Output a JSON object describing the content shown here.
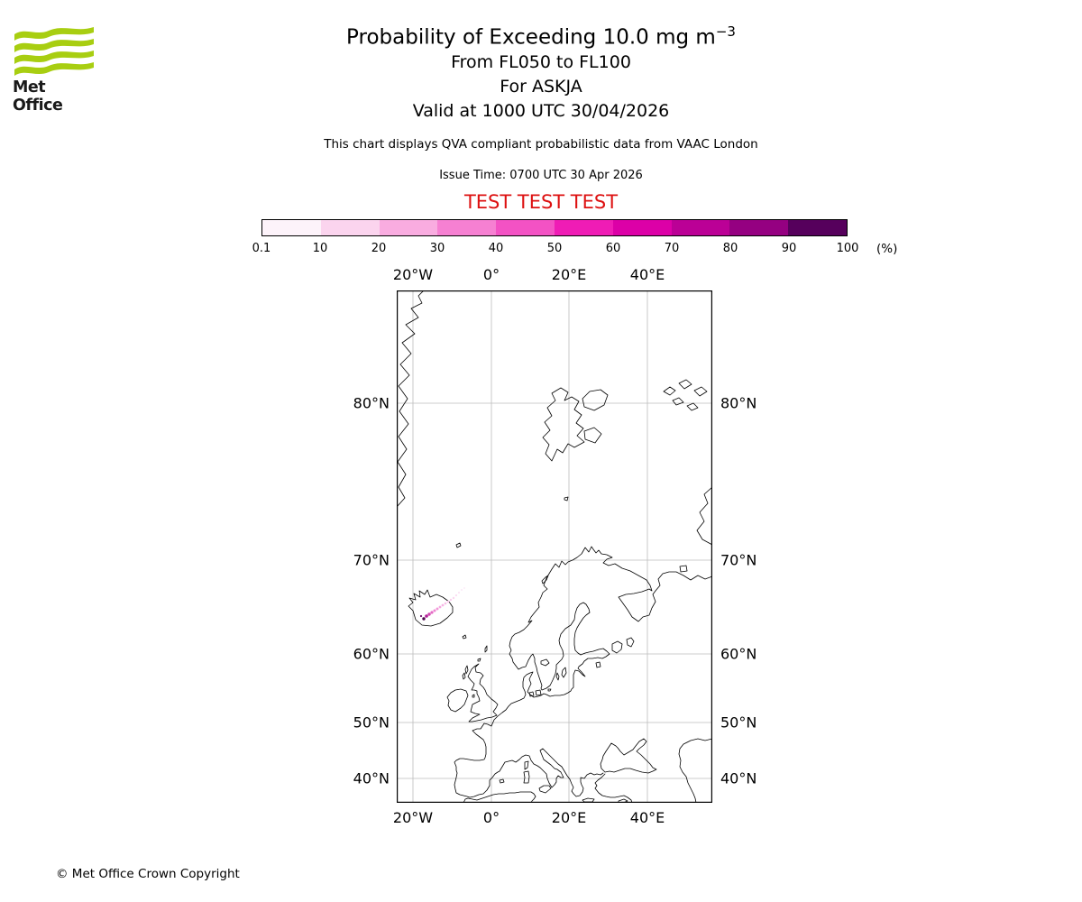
{
  "colors": {
    "logo_green": "#a8ce11",
    "test_red": "#dd1111",
    "gridline": "#bcbcbc",
    "coastline": "#000000"
  },
  "header": {
    "logo_text": "Met Office",
    "title_main": "Probability of Exceeding 10.0 mg m",
    "title_sup": "−3",
    "subtitle_levels": "From FL050 to FL100",
    "subtitle_volcano": "For ASKJA",
    "subtitle_valid": "Valid at 1000 UTC 30/04/2026",
    "description": "This chart displays QVA compliant probabilistic data from VAAC London",
    "issue_time": "Issue Time: 0700 UTC 30 Apr 2026",
    "test_banner": "TEST TEST TEST"
  },
  "colorbar": {
    "tick_labels": [
      "0.1",
      "10",
      "20",
      "30",
      "40",
      "50",
      "60",
      "70",
      "80",
      "90",
      "100"
    ],
    "unit": "(%)",
    "segment_colors": [
      "#fdf3fa",
      "#fbd4ee",
      "#f9ace0",
      "#f680d2",
      "#f352c4",
      "#ef1cb5",
      "#dc00a7",
      "#bb0096",
      "#950081",
      "#56005c"
    ]
  },
  "map": {
    "lon_labels": [
      "20°W",
      "0°",
      "20°E",
      "40°E"
    ],
    "lat_labels": [
      "80°N",
      "70°N",
      "60°N",
      "50°N",
      "40°N"
    ]
  },
  "footer": {
    "copyright": "© Met Office Crown Copyright"
  },
  "chart_data": {
    "type": "heatmap",
    "subtype": "geographic probability contour map, Mercator projection, Europe / North Atlantic",
    "title": "Probability of Exceeding 10.0 mg m−3, From FL050 to FL100, For ASKJA, Valid at 1000 UTC 30/04/2026",
    "source_note": "QVA compliant probabilistic data from VAAC London",
    "colorbar_unit": "%",
    "colorbar_ticks": [
      0.1,
      10,
      20,
      30,
      40,
      50,
      60,
      70,
      80,
      90,
      100
    ],
    "map_extent": {
      "lon_min": -24.2,
      "lon_max": 56.6,
      "lat_min": 34.9,
      "lat_max": 83.9
    },
    "grid_lons_deg": [
      -20,
      0,
      20,
      40
    ],
    "grid_lats_deg": [
      40,
      50,
      60,
      70,
      80
    ],
    "plume": {
      "description": "Small low-probability ash plume extending northeast from Askja volcano, central Iceland (~65.0N 16.8W) toward ~67N 11W; probabilities mostly below 30% with a small darker core near the volcano.",
      "dots": [
        [
          30,
          364,
          1.7,
          "#4a074a"
        ],
        [
          27,
          361,
          1.1,
          "#6b0e6b"
        ],
        [
          33,
          361,
          1.8,
          "#b01e96"
        ],
        [
          36,
          359,
          1.7,
          "#cf43ae"
        ],
        [
          39,
          357,
          1.6,
          "#e468c4"
        ],
        [
          42,
          355,
          1.5,
          "#ee85d2"
        ],
        [
          45,
          353,
          1.5,
          "#f298d9"
        ],
        [
          48,
          351,
          1.4,
          "#f5a7df"
        ],
        [
          51,
          349,
          1.4,
          "#f6b2e3"
        ],
        [
          54,
          347,
          1.3,
          "#f8bde7"
        ],
        [
          57,
          345,
          1.3,
          "#f9c6ea"
        ],
        [
          60,
          343,
          1.2,
          "#facfee"
        ],
        [
          63,
          341,
          1.2,
          "#fad6f0"
        ],
        [
          66,
          338,
          1.1,
          "#fbdcf2"
        ],
        [
          69,
          335,
          1.1,
          "#fce3f5"
        ],
        [
          72,
          332,
          1.0,
          "#fce8f7"
        ],
        [
          75,
          330,
          1.0,
          "#fdedf9"
        ]
      ]
    }
  }
}
